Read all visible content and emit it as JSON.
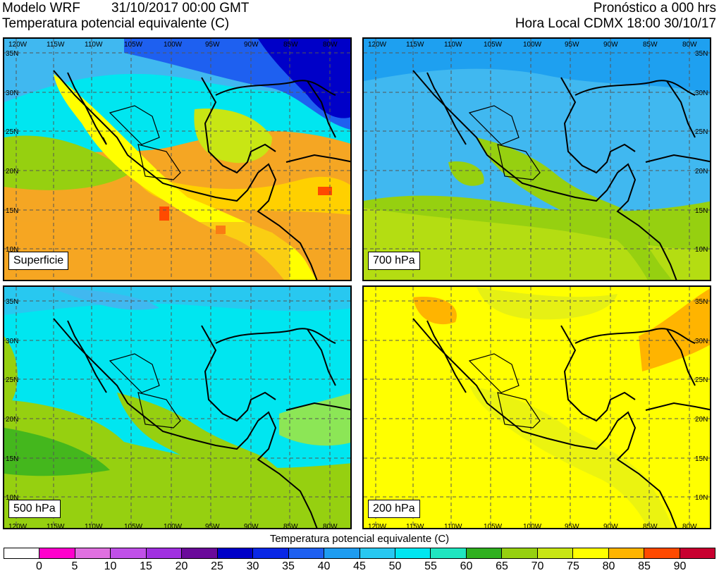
{
  "header": {
    "model": "Modelo WRF",
    "datetime": "31/10/2017 00:00 GMT",
    "variable": "Temperatura potencial equivalente (C)",
    "forecast": "Pronóstico a 000 hrs",
    "local_time": "Hora Local CDMX 18:00 30/10/17"
  },
  "panels": [
    {
      "level": "Superficie",
      "top_lon": [
        "120W",
        "115W",
        "110W",
        "105W",
        "100W",
        "95W",
        "90W",
        "85W",
        "80W"
      ],
      "bottom_lon": []
    },
    {
      "level": "700 hPa",
      "top_lon": [
        "120W",
        "115W",
        "110W",
        "105W",
        "100W",
        "95W",
        "90W",
        "85W",
        "80W"
      ],
      "bottom_lon": []
    },
    {
      "level": "500 hPa",
      "top_lon": [],
      "bottom_lon": [
        "120W",
        "115W",
        "110W",
        "105W",
        "100W",
        "95W",
        "90W",
        "85W",
        "80W"
      ]
    },
    {
      "level": "200 hPa",
      "top_lon": [],
      "bottom_lon": [
        "120W",
        "115W",
        "110W",
        "105W",
        "100W",
        "95W",
        "90W",
        "85W",
        "80W"
      ]
    }
  ],
  "lat_labels": [
    "35N",
    "30N",
    "25N",
    "20N",
    "15N",
    "10N"
  ],
  "colorbar": {
    "title": "Temperatura potencial equivalente (C)",
    "labels": [
      "0",
      "5",
      "10",
      "15",
      "20",
      "25",
      "30",
      "35",
      "40",
      "45",
      "50",
      "55",
      "60",
      "65",
      "70",
      "75",
      "80",
      "85",
      "90"
    ],
    "colors": [
      "#ffffff",
      "#ff00cc",
      "#e070e0",
      "#c050e8",
      "#a030e0",
      "#6a0a9a",
      "#0000c8",
      "#0a28e6",
      "#1e60f0",
      "#1e9cf0",
      "#28c8f0",
      "#00e6f0",
      "#20e6c0",
      "#30b020",
      "#96d010",
      "#c8e614",
      "#ffff00",
      "#ffb400",
      "#ff4a00",
      "#c80030"
    ]
  },
  "fields": {
    "sfc": {
      "bg": "#f5a623",
      "ocean_n": "#96d010",
      "gulf": "#7fd0ff",
      "north": "#1e60f0",
      "land": "#ffff00"
    },
    "p700": {
      "bg": "#40b8f0",
      "south": "#96d010",
      "land": "#96d010"
    },
    "p500": {
      "bg": "#00e6f0",
      "south": "#96d010",
      "land": "#96d010"
    },
    "p200": {
      "bg": "#ffff00",
      "ne": "#ffb400",
      "land": "#c8e614"
    }
  }
}
